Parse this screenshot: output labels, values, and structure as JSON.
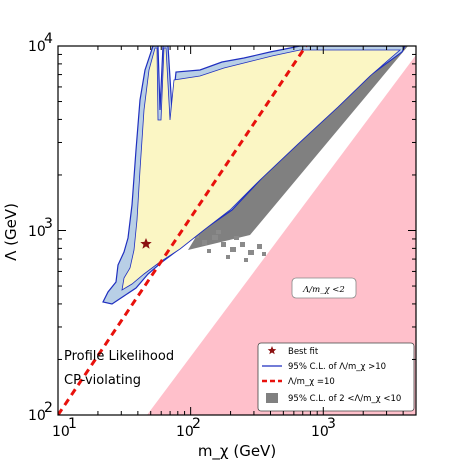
{
  "chart_data": {
    "type": "scatter",
    "title": "",
    "xlabel": "m_χ (GeV)",
    "ylabel": "Λ (GeV)",
    "x_scale": "log",
    "y_scale": "log",
    "xlim": [
      10,
      5000
    ],
    "ylim": [
      100,
      10000
    ],
    "x_ticks": [
      {
        "value": 10,
        "label": "10"
      },
      {
        "value": 100,
        "label": "10"
      },
      {
        "value": 1000,
        "label": "10"
      }
    ],
    "x_tick_exponents": [
      "1",
      "2",
      "3"
    ],
    "y_ticks": [
      {
        "value": 100,
        "label": "10"
      },
      {
        "value": 1000,
        "label": "10"
      },
      {
        "value": 10000,
        "label": "10"
      }
    ],
    "y_tick_exponents": [
      "2",
      "3",
      "4"
    ],
    "annotations": {
      "profile": "Profile Likelihood",
      "cp": "CP-violating",
      "box_label": "Λ/m_χ <2"
    },
    "best_fit": {
      "x": 46,
      "y": 870
    },
    "reference_line_ratio": 10,
    "excluded_ratio": 2,
    "colors": {
      "yellow_region": "#fbf6c4",
      "blue_region": "#b8cfe6",
      "contour": "#1f2fbf",
      "grey_band": "#808080",
      "pink_region": "#ffc0cb",
      "red_line": "#e8110c",
      "star": "#8b1010"
    },
    "legend": {
      "placement": "bottom-right",
      "items": [
        {
          "symbol": "star",
          "label": "Best fit"
        },
        {
          "symbol": "line",
          "label": "95% C.L. of Λ/m_χ >10"
        },
        {
          "symbol": "dashed",
          "label": "Λ/m_χ =10"
        },
        {
          "symbol": "square",
          "label": "95% C.L. of 2 <Λ/m_χ <10"
        }
      ]
    }
  }
}
